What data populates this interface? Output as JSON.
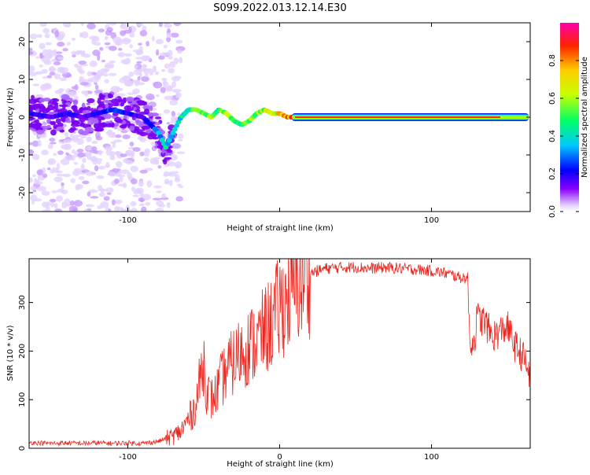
{
  "title": "S099.2022.013.12.14.E30",
  "colorbar": {
    "label": "Normalized spectral amplitude",
    "ticks": [
      "0.0",
      "0.2",
      "0.4",
      "0.6",
      "0.8"
    ],
    "tick_values": [
      0.0,
      0.2,
      0.4,
      0.6,
      0.8
    ],
    "range": [
      0,
      1
    ]
  },
  "chart_data": [
    {
      "type": "heatmap",
      "xlabel": "Height of straight line (km)",
      "ylabel": "Frequency (Hz)",
      "xlim": [
        -165,
        165
      ],
      "ylim": [
        -25,
        25
      ],
      "xticks": [
        -100,
        0,
        100
      ],
      "xtick_labels": [
        "-100",
        "",
        "100"
      ],
      "yticks": [
        -20,
        -10,
        0,
        10,
        20
      ],
      "ytick_labels": [
        "-20",
        "-10",
        "0",
        "10",
        "20"
      ],
      "grid": false,
      "ridge": {
        "x": [
          -165,
          -150,
          -140,
          -130,
          -120,
          -110,
          -100,
          -90,
          -80,
          -75,
          -70,
          -65,
          -60,
          -55,
          -50,
          -45,
          -40,
          -35,
          -30,
          -25,
          -20,
          -15,
          -10,
          -5,
          0,
          5,
          10,
          20,
          50,
          100,
          150,
          165
        ],
        "y": [
          1,
          0,
          1,
          0,
          1,
          2,
          1,
          0,
          -4,
          -8,
          -4,
          0,
          2,
          2,
          1,
          0,
          2,
          1,
          -1,
          -2,
          -1,
          1,
          2,
          1,
          1,
          0,
          0,
          0,
          0,
          0,
          0,
          0
        ],
        "amplitude": [
          0.2,
          0.15,
          0.2,
          0.15,
          0.2,
          0.25,
          0.2,
          0.15,
          0.3,
          0.4,
          0.35,
          0.4,
          0.45,
          0.5,
          0.5,
          0.55,
          0.5,
          0.6,
          0.55,
          0.5,
          0.55,
          0.55,
          0.6,
          0.65,
          0.7,
          0.75,
          0.8,
          0.85,
          0.9,
          0.95,
          0.9,
          0.7
        ]
      }
    },
    {
      "type": "line",
      "xlabel": "Height of straight line (km)",
      "ylabel": "SNR (10 * v/v)",
      "xlim": [
        -165,
        165
      ],
      "ylim": [
        0,
        390
      ],
      "xticks": [
        -100,
        0,
        100
      ],
      "xtick_labels": [
        "-100",
        "0",
        "100"
      ],
      "yticks": [
        0,
        100,
        200,
        300
      ],
      "ytick_labels": [
        "0",
        "100",
        "200",
        "300"
      ],
      "grid": false,
      "series": [
        {
          "color": "#e8261f",
          "x": [
            -165,
            -150,
            -140,
            -130,
            -120,
            -110,
            -100,
            -90,
            -80,
            -75,
            -70,
            -65,
            -60,
            -58,
            -55,
            -52,
            -50,
            -48,
            -45,
            -42,
            -40,
            -35,
            -30,
            -25,
            -20,
            -15,
            -10,
            -5,
            0,
            5,
            10,
            15,
            20,
            25,
            30,
            40,
            50,
            60,
            70,
            80,
            90,
            100,
            110,
            118,
            124,
            125,
            126,
            128,
            130,
            135,
            140,
            145,
            150,
            155,
            160,
            165
          ],
          "y": [
            12,
            10,
            11,
            10,
            11,
            10,
            11,
            10,
            14,
            20,
            25,
            35,
            60,
            70,
            90,
            150,
            180,
            120,
            100,
            110,
            130,
            160,
            180,
            200,
            210,
            220,
            240,
            260,
            290,
            310,
            330,
            350,
            360,
            365,
            370,
            372,
            373,
            370,
            372,
            370,
            368,
            365,
            360,
            352,
            350,
            230,
            220,
            215,
            270,
            260,
            230,
            240,
            250,
            210,
            190,
            150
          ]
        }
      ]
    }
  ]
}
